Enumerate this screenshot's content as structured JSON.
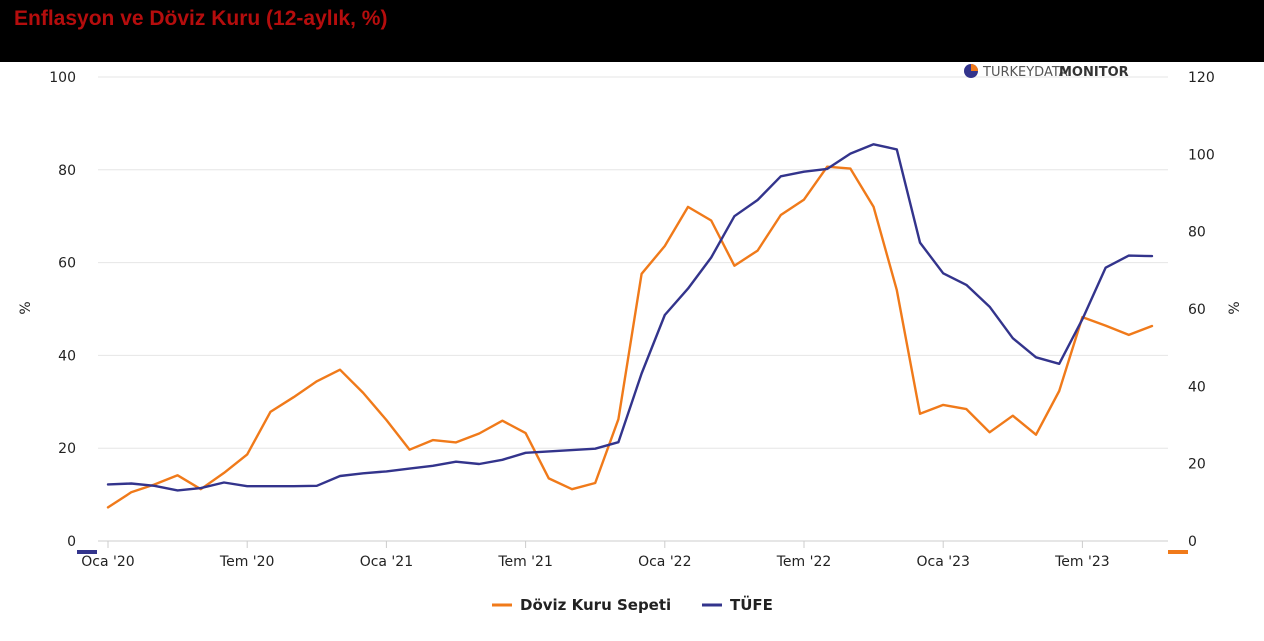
{
  "header": {
    "title": "Enflasyon ve Döviz Kuru (12-aylık, %)"
  },
  "watermark": {
    "part1": "TURKEYDATA",
    "part2": "MONITOR"
  },
  "colors": {
    "header_bg": "#000000",
    "title": "#b50d0d",
    "orange": "#f07a1a",
    "navy": "#33348c",
    "grid": "#e6e6e6"
  },
  "chart_data": {
    "type": "line",
    "x_tick_labels": [
      "Oca '20",
      "Tem '20",
      "Oca '21",
      "Tem '21",
      "Oca '22",
      "Tem '22",
      "Oca '23",
      "Tem '23"
    ],
    "left_axis": {
      "label": "%",
      "min": 0,
      "max": 100,
      "ticks": [
        "0",
        "20",
        "40",
        "60",
        "80",
        "100"
      ]
    },
    "right_axis": {
      "label": "%",
      "min": 0,
      "max": 120,
      "ticks": [
        "0",
        "20",
        "40",
        "60",
        "80",
        "100",
        "120"
      ]
    },
    "series": [
      {
        "name": "Döviz Kuru Sepeti",
        "axis": "right",
        "color": "#f07a1a",
        "values": [
          8.7,
          12.6,
          14.6,
          17.0,
          13.4,
          17.6,
          22.4,
          33.4,
          37.2,
          41.3,
          44.3,
          38.3,
          31.3,
          23.6,
          26.1,
          25.5,
          27.8,
          31.1,
          27.9,
          16.2,
          13.4,
          15.0,
          31.5,
          69.1,
          76.3,
          86.4,
          82.9,
          71.2,
          75.1,
          84.3,
          88.3,
          96.8,
          96.3,
          86.4,
          64.9,
          32.9,
          35.2,
          34.1,
          28.1,
          32.4,
          27.5,
          38.8,
          57.9,
          55.7,
          53.3,
          55.6
        ]
      },
      {
        "name": "TÜFE",
        "axis": "left",
        "color": "#33348c",
        "values": [
          12.2,
          12.4,
          11.9,
          10.9,
          11.4,
          12.6,
          11.8,
          11.8,
          11.8,
          11.9,
          14.0,
          14.6,
          15.0,
          15.6,
          16.2,
          17.1,
          16.6,
          17.5,
          19.0,
          19.3,
          19.6,
          19.9,
          21.3,
          36.1,
          48.7,
          54.4,
          61.1,
          70.0,
          73.5,
          78.6,
          79.6,
          80.2,
          83.5,
          85.5,
          84.4,
          64.3,
          57.7,
          55.2,
          50.5,
          43.7,
          39.6,
          38.2,
          47.8,
          58.9,
          61.5,
          61.4
        ]
      }
    ],
    "grid": true,
    "legend": "bottom-center"
  }
}
